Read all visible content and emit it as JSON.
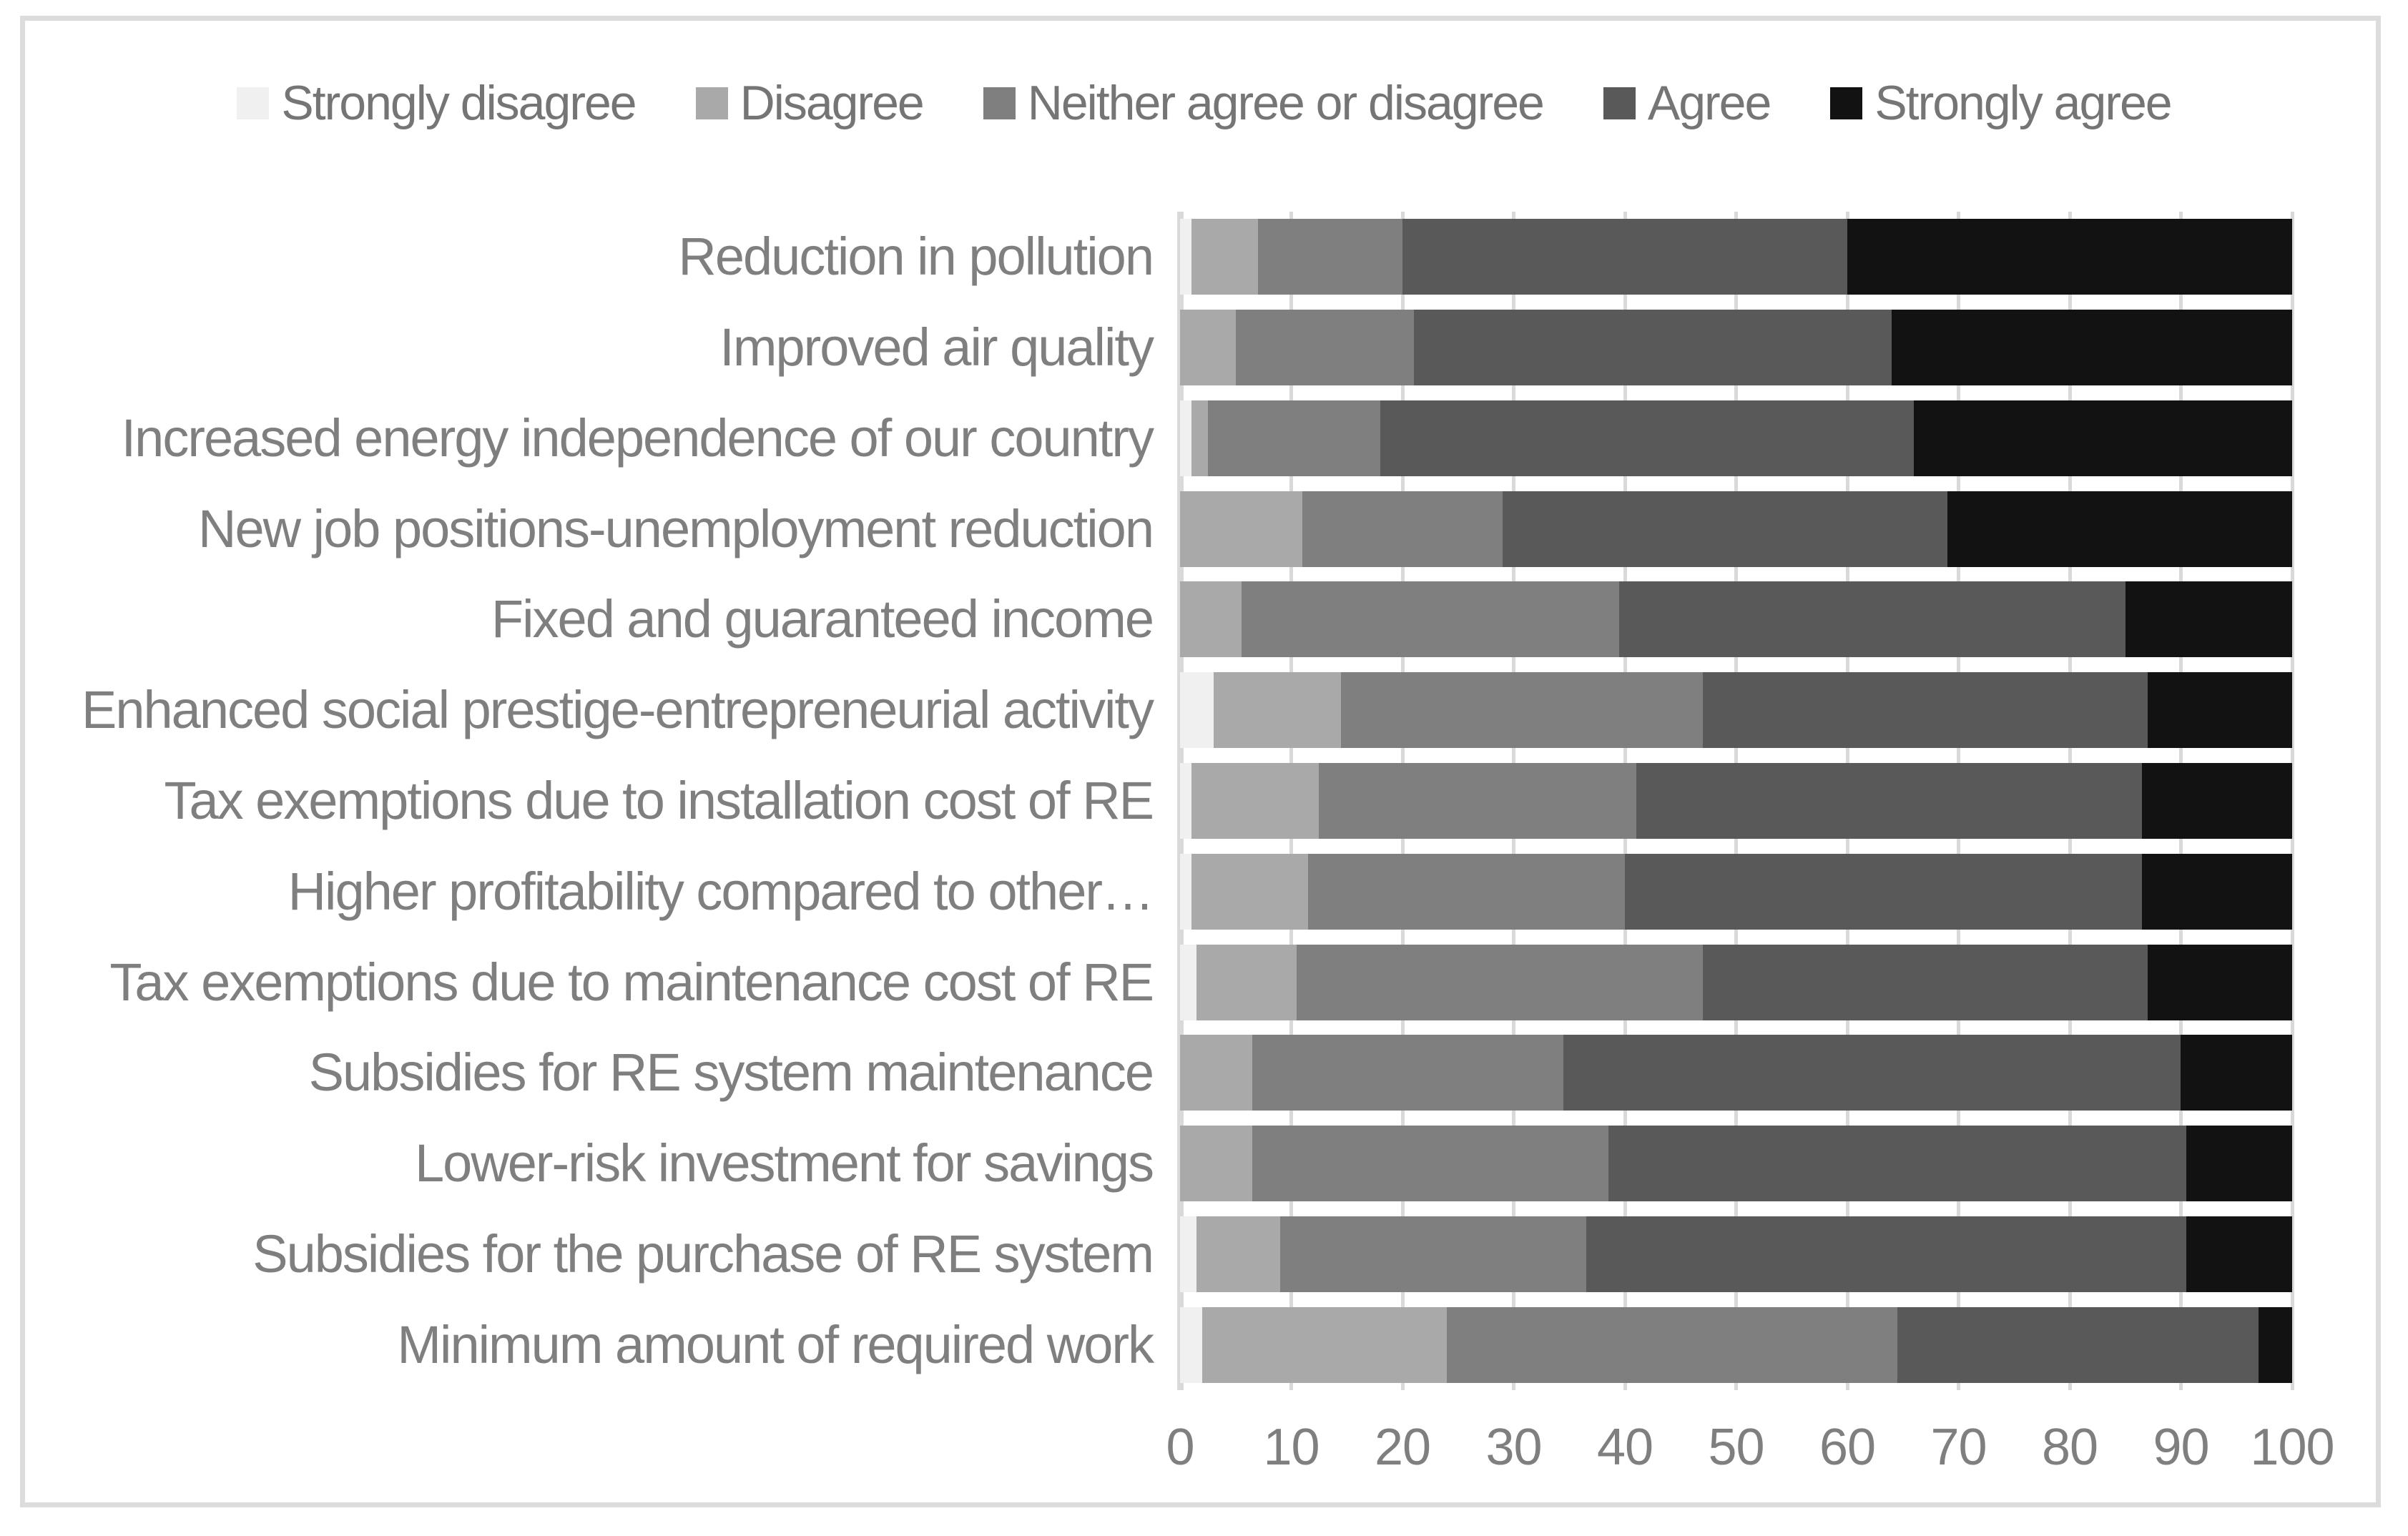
{
  "chart_data": {
    "type": "bar",
    "orientation": "horizontal",
    "stacked": true,
    "stack_total": 100,
    "title": "",
    "xlabel": "",
    "ylabel": "",
    "xlim": [
      0,
      100
    ],
    "x_ticks": [
      0,
      10,
      20,
      30,
      40,
      50,
      60,
      70,
      80,
      90,
      100
    ],
    "grid": "vertical",
    "legend_position": "top",
    "categories": [
      "Reduction in pollution",
      "Improved air quality",
      "Increased energy independence of our country",
      "New job positions-unemployment reduction",
      "Fixed and guaranteed income",
      "Enhanced social prestige-entrepreneurial activity",
      "Tax exemptions due to installation cost of RE",
      "Higher profitability compared to other…",
      "Tax exemptions due to maintenance cost of RE",
      "Subsidies for RE system maintenance",
      "Lower-risk investment for savings",
      "Subsidies for the purchase of RE system",
      "Minimum amount of required work"
    ],
    "series": [
      {
        "name": "Strongly disagree",
        "color": "#f0f0f0",
        "values": [
          1,
          0,
          1,
          0,
          0,
          3,
          1,
          1,
          1.5,
          0,
          0,
          1.5,
          2
        ]
      },
      {
        "name": "Disagree",
        "color": "#a9a9a9",
        "values": [
          6,
          5,
          1.5,
          11,
          5.5,
          11.5,
          11.5,
          10.5,
          9,
          6.5,
          6.5,
          7.5,
          22
        ]
      },
      {
        "name": "Neither agree or disagree",
        "color": "#7f7f7f",
        "values": [
          13,
          16,
          15.5,
          18,
          34,
          32.5,
          28.5,
          28.5,
          36.5,
          28,
          32,
          27.5,
          40.5
        ]
      },
      {
        "name": "Agree",
        "color": "#595959",
        "values": [
          40,
          43,
          48,
          40,
          45.5,
          40,
          45.5,
          46.5,
          40,
          55.5,
          52,
          54,
          32.5
        ]
      },
      {
        "name": "Strongly agree",
        "color": "#121212",
        "values": [
          40,
          36,
          34,
          31,
          15,
          13,
          13.5,
          13.5,
          13,
          10,
          9.5,
          9.5,
          3
        ]
      }
    ],
    "colors": {
      "gridline": "#d9d9d9",
      "axis_line": "#d9d9d9",
      "frame_border": "#dcdcdc",
      "tick_label": "#7f7f7f",
      "category_label": "#7f7f7f",
      "legend_label": "#757575",
      "background": "#ffffff"
    }
  }
}
